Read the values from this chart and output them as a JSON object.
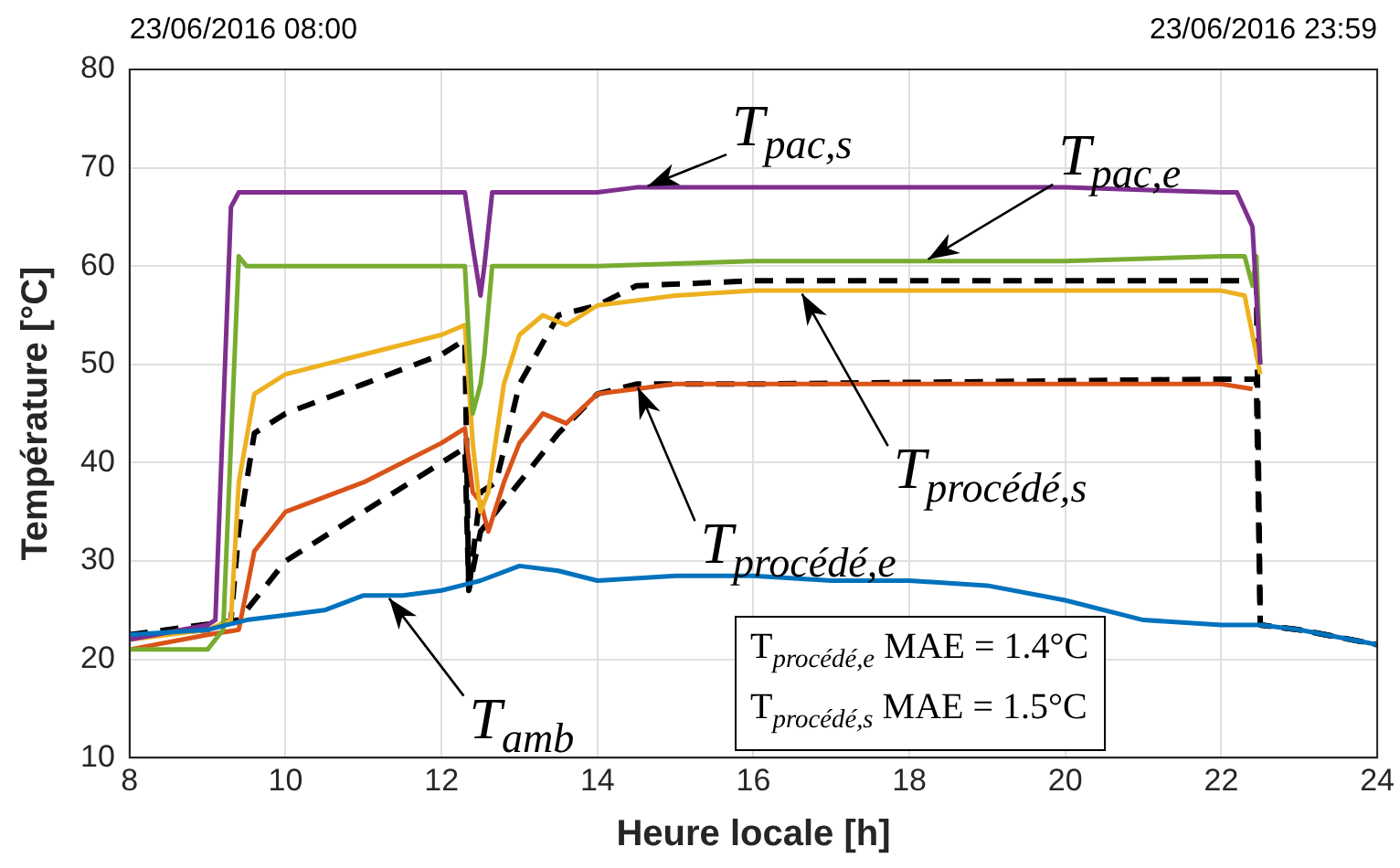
{
  "chart_data": {
    "type": "line",
    "xlabel": "Heure locale [h]",
    "ylabel": "Température [°C]",
    "xlim": [
      8,
      24
    ],
    "xticks": [
      8,
      10,
      12,
      14,
      16,
      18,
      20,
      22,
      24
    ],
    "ylim": [
      10,
      80
    ],
    "yticks": [
      10,
      20,
      30,
      40,
      50,
      60,
      70,
      80
    ],
    "grid": true,
    "legend": false,
    "marker": "none",
    "series": [
      {
        "color": "#0072bd",
        "x": [
          8,
          9,
          9.5,
          10,
          10.5,
          11,
          11.5,
          12,
          12.5,
          13,
          13.5,
          14,
          15,
          16,
          17,
          18,
          19,
          20,
          21,
          22,
          22.5,
          23,
          24
        ],
        "values": [
          22.5,
          23,
          24,
          24.5,
          25,
          26.5,
          26.5,
          27,
          28,
          29.5,
          29,
          28,
          28.5,
          28.5,
          28,
          28,
          27.5,
          26,
          24,
          23.5,
          23.5,
          23,
          21.5
        ]
      },
      {
        "color": "#7e2f8e",
        "x": [
          8,
          9,
          9.1,
          9.3,
          9.4,
          10,
          11,
          12,
          12.3,
          12.4,
          12.5,
          12.55,
          12.65,
          13,
          14,
          14.5,
          16,
          18,
          20,
          22,
          22.2,
          22.4,
          22.5
        ],
        "values": [
          22,
          23.5,
          24,
          66,
          67.5,
          67.5,
          67.5,
          67.5,
          67.5,
          62,
          57,
          60,
          67.5,
          67.5,
          67.5,
          68,
          68,
          68,
          68,
          67.5,
          67.5,
          64,
          50
        ]
      },
      {
        "color": "#77ac30",
        "x": [
          8,
          9,
          9.2,
          9.4,
          9.5,
          10,
          11,
          12,
          12.3,
          12.4,
          12.5,
          12.55,
          12.65,
          13,
          14,
          16,
          18,
          20,
          22,
          22.3,
          22.4,
          22.45,
          22.5
        ],
        "values": [
          21,
          21,
          23,
          61,
          60,
          60,
          60,
          60,
          60,
          45,
          48,
          51,
          60,
          60,
          60,
          60.5,
          60.5,
          60.5,
          61,
          61,
          58,
          61,
          50
        ]
      },
      {
        "color": "#edb120",
        "x": [
          8,
          9,
          9.3,
          9.4,
          9.6,
          10,
          11,
          12,
          12.3,
          12.4,
          12.5,
          12.6,
          12.8,
          13,
          13.3,
          13.6,
          14,
          15,
          16,
          18,
          20,
          22,
          22.3,
          22.5
        ],
        "values": [
          22,
          23,
          24,
          38,
          47,
          49,
          51,
          53,
          54,
          42,
          35,
          37,
          48,
          53,
          55,
          54,
          56,
          57,
          57.5,
          57.5,
          57.5,
          57.5,
          57,
          49
        ]
      },
      {
        "color": "#d95319",
        "x": [
          8,
          9,
          9.4,
          9.6,
          10,
          11,
          12,
          12.3,
          12.4,
          12.5,
          12.6,
          12.8,
          13,
          13.3,
          13.6,
          14,
          15,
          16,
          18,
          20,
          22,
          22.4
        ],
        "values": [
          21,
          22.5,
          23,
          31,
          35,
          38,
          42,
          43.5,
          37,
          36,
          33,
          38,
          42,
          45,
          44,
          47,
          48,
          48,
          48,
          48,
          48,
          47.5
        ]
      },
      {
        "color": "#000000",
        "line_style": "dashed",
        "x": [
          8,
          9,
          9.3,
          9.4,
          9.5,
          9.6,
          10,
          11,
          12,
          12.3,
          12.35,
          12.5,
          12.7,
          13,
          13.5,
          14,
          14.5,
          16,
          22,
          22.45,
          22.5,
          23,
          24
        ],
        "values": [
          22.5,
          23,
          24,
          33,
          38,
          43,
          45,
          48,
          51,
          52.5,
          27,
          37,
          38,
          48,
          55,
          56,
          58,
          58.5,
          58.5,
          58.5,
          23.5,
          23,
          21.5
        ]
      },
      {
        "color": "#000000",
        "line_style": "dashed",
        "x": [
          8,
          9.4,
          10,
          11,
          12,
          12.3,
          12.35,
          12.5,
          13,
          13.5,
          14,
          14.5,
          16,
          22,
          22.45,
          22.5,
          23,
          24
        ],
        "values": [
          22.5,
          24,
          30,
          35,
          40,
          41.5,
          27,
          33,
          38,
          43,
          47,
          48,
          48,
          48.5,
          48.5,
          23.5,
          23,
          21.5
        ]
      }
    ],
    "annotations": [
      {
        "text": "T$_{pac,s}$",
        "x": 14.6,
        "y": 68
      },
      {
        "text": "T$_{pac,e}$",
        "x": 18.2,
        "y": 60.5
      },
      {
        "text": "T$_{procédé,s}$",
        "x": 16.6,
        "y": 57.5
      },
      {
        "text": "T$_{procédé,e}$",
        "x": 14.5,
        "y": 48
      },
      {
        "text": "T$_{amb}$",
        "x": 11.3,
        "y": 26.5
      },
      "23/06/2016 08:00",
      "23/06/2016 23:59",
      "T$_{procédé,e}$ MAE = 1.4°C",
      "T$_{procédé,s}$ MAE = 1.5°C"
    ]
  }
}
